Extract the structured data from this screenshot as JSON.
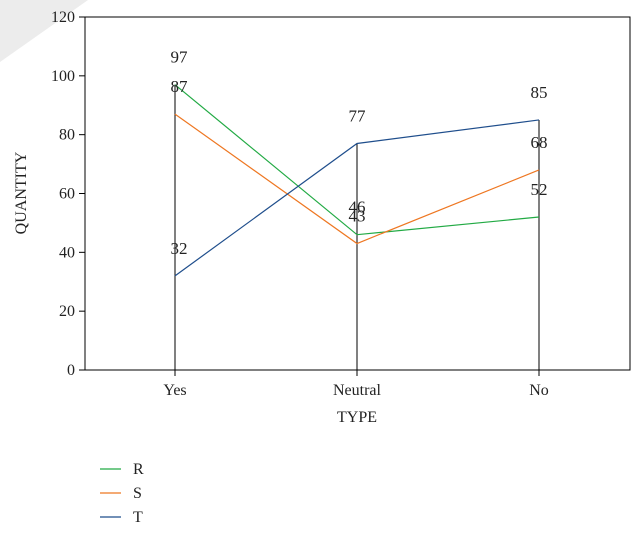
{
  "chart_data": {
    "type": "line",
    "categories": [
      "Yes",
      "Neutral",
      "No"
    ],
    "series": [
      {
        "name": "R",
        "color": "#22aa44",
        "values": [
          97,
          46,
          52
        ]
      },
      {
        "name": "S",
        "color": "#ee7722",
        "values": [
          87,
          43,
          68
        ]
      },
      {
        "name": "T",
        "color": "#1f4e8c",
        "values": [
          32,
          77,
          85
        ]
      }
    ],
    "xlabel": "TYPE",
    "ylabel": "QUANTITY",
    "ylim": [
      0,
      120
    ],
    "yticks": [
      0,
      20,
      40,
      60,
      80,
      100,
      120
    ],
    "grid": false,
    "legend_position": "bottom-left",
    "data_labels": true
  }
}
